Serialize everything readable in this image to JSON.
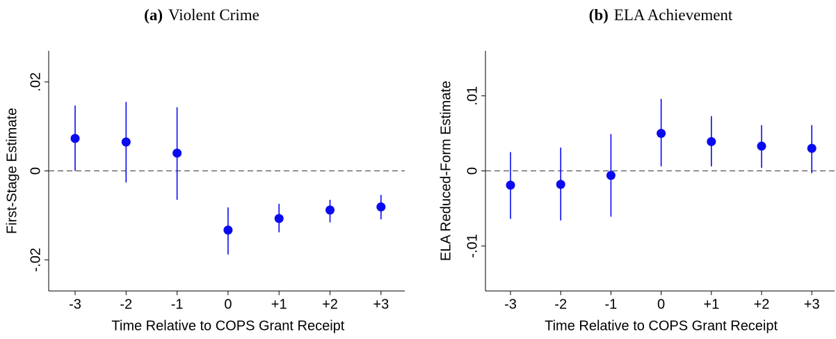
{
  "chart_data": [
    {
      "type": "errorbar",
      "panel": "(a)",
      "title": "Violent Crime",
      "x_label": "Time Relative to COPS Grant Receipt",
      "y_label": "First-Stage Estimate",
      "categories": [
        "-3",
        "-2",
        "-1",
        "0",
        "+1",
        "+2",
        "+3"
      ],
      "values": [
        0.0073,
        0.0065,
        0.004,
        -0.0133,
        -0.0107,
        -0.0088,
        -0.0081
      ],
      "ci_low": [
        0.0,
        -0.0026,
        -0.0065,
        -0.0188,
        -0.0138,
        -0.0116,
        -0.0109
      ],
      "ci_high": [
        0.0147,
        0.0155,
        0.0143,
        -0.0082,
        -0.0074,
        -0.0065,
        -0.0054
      ],
      "color": "#0a0af0",
      "reference_line": 0,
      "ylim": [
        -0.027,
        0.027
      ],
      "yticks": [
        {
          "value": -0.02,
          "label": "-.02"
        },
        0,
        {
          "value": 0.02,
          "label": ".02"
        }
      ]
    },
    {
      "type": "errorbar",
      "panel": "(b)",
      "title": "ELA Achievement",
      "x_label": "Time Relative to COPS Grant Receipt",
      "y_label": "ELA Reduced-Form Estimate",
      "categories": [
        "-3",
        "-2",
        "-1",
        "0",
        "+1",
        "+2",
        "+3"
      ],
      "values": [
        -0.0019,
        -0.0018,
        -0.0006,
        0.005,
        0.0039,
        0.0033,
        0.003
      ],
      "ci_low": [
        -0.0064,
        -0.0066,
        -0.0061,
        0.0006,
        0.0006,
        0.0004,
        -0.0003
      ],
      "ci_high": [
        0.0025,
        0.0031,
        0.0049,
        0.0096,
        0.0073,
        0.0061,
        0.0061
      ],
      "color": "#0a0af0",
      "reference_line": 0,
      "ylim": [
        -0.016,
        0.016
      ],
      "yticks": [
        {
          "value": -0.01,
          "label": "-.01"
        },
        0,
        {
          "value": 0.01,
          "label": ".01"
        }
      ]
    }
  ]
}
